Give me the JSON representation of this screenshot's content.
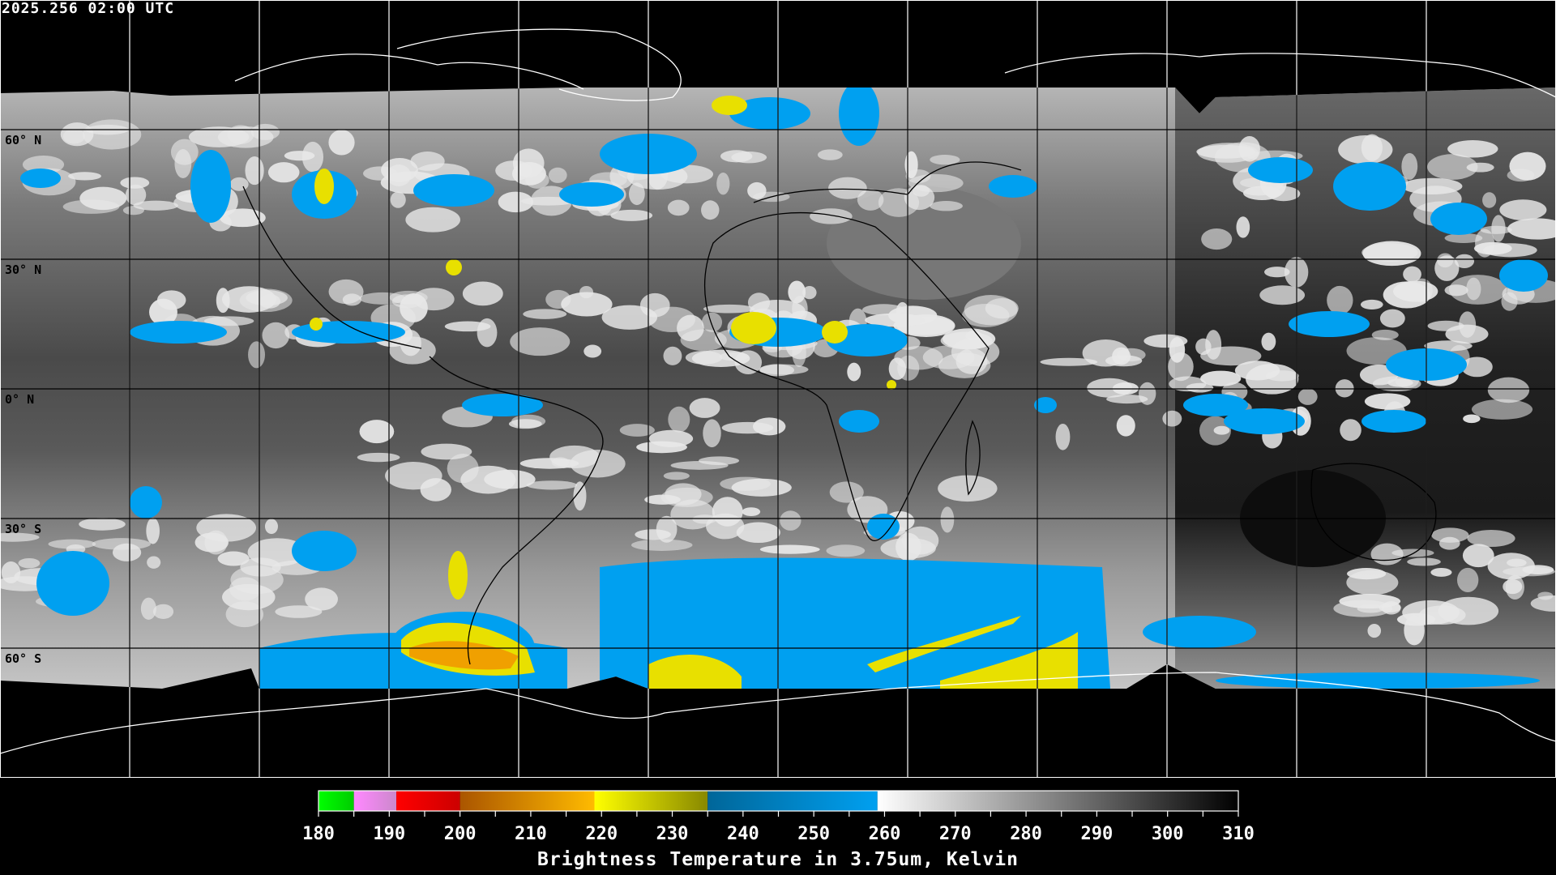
{
  "timestamp": "2025.256 02:00 UTC",
  "latitude_labels": [
    "60° N",
    "30° N",
    "0° N",
    "30° S",
    "60° S"
  ],
  "colorbar": {
    "title": "Brightness Temperature in 3.75um, Kelvin",
    "range": [
      180,
      310
    ],
    "tick_labels": [
      "180",
      "190",
      "200",
      "210",
      "220",
      "230",
      "240",
      "250",
      "260",
      "270",
      "280",
      "290",
      "300",
      "310"
    ],
    "segments": [
      {
        "from": 180,
        "to": 185,
        "colors": [
          "#00ff00",
          "#00cc00"
        ]
      },
      {
        "from": 185,
        "to": 191,
        "colors": [
          "#ff88ff",
          "#cc88cc"
        ]
      },
      {
        "from": 191,
        "to": 200,
        "colors": [
          "#ff0000",
          "#cc0000"
        ]
      },
      {
        "from": 200,
        "to": 219,
        "colors": [
          "#aa5500",
          "#ffbb00"
        ]
      },
      {
        "from": 219,
        "to": 235,
        "colors": [
          "#ffff00",
          "#888800"
        ]
      },
      {
        "from": 235,
        "to": 259,
        "colors": [
          "#006699",
          "#00a0f0"
        ]
      },
      {
        "from": 259,
        "to": 310,
        "colors": [
          "#ffffff",
          "#000000"
        ]
      }
    ]
  },
  "colors": {
    "cold_cloud_blue": "#00a0f0",
    "very_cold_yellow": "#e8e000",
    "coldest_orange": "#f0a000",
    "coastline_over_image": "#000000",
    "coastline_over_space": "#ffffff"
  }
}
